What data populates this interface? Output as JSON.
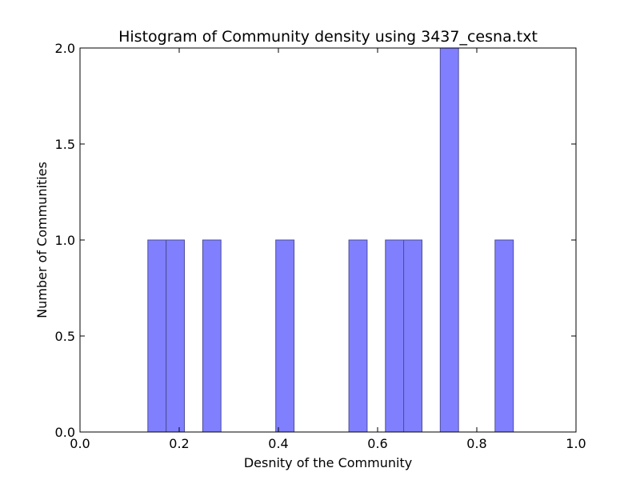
{
  "chart_data": {
    "type": "bar",
    "title": "Histogram of Community density using 3437_cesna.txt",
    "xlabel": "Desnity of the Community",
    "ylabel": "Number of Communities",
    "xlim": [
      0.0,
      1.0
    ],
    "ylim": [
      0.0,
      2.0
    ],
    "xticks": [
      "0.0",
      "0.2",
      "0.4",
      "0.6",
      "0.8",
      "1.0"
    ],
    "xtick_values": [
      0.0,
      0.2,
      0.4,
      0.6,
      0.8,
      1.0
    ],
    "yticks": [
      "0.0",
      "0.5",
      "1.0",
      "1.5",
      "2.0"
    ],
    "ytick_values": [
      0.0,
      0.5,
      1.0,
      1.5,
      2.0
    ],
    "grid": false,
    "bar_color": "#8080ff",
    "bar_edge_color": "#4d4d99",
    "bins": [
      {
        "x0": 0.1368,
        "x1": 0.1737,
        "count": 1
      },
      {
        "x0": 0.1737,
        "x1": 0.2105,
        "count": 1
      },
      {
        "x0": 0.2474,
        "x1": 0.2842,
        "count": 1
      },
      {
        "x0": 0.3947,
        "x1": 0.4316,
        "count": 1
      },
      {
        "x0": 0.5421,
        "x1": 0.5789,
        "count": 1
      },
      {
        "x0": 0.6158,
        "x1": 0.6526,
        "count": 1
      },
      {
        "x0": 0.6526,
        "x1": 0.6895,
        "count": 1
      },
      {
        "x0": 0.7263,
        "x1": 0.7632,
        "count": 2
      },
      {
        "x0": 0.8368,
        "x1": 0.8737,
        "count": 1
      }
    ]
  }
}
